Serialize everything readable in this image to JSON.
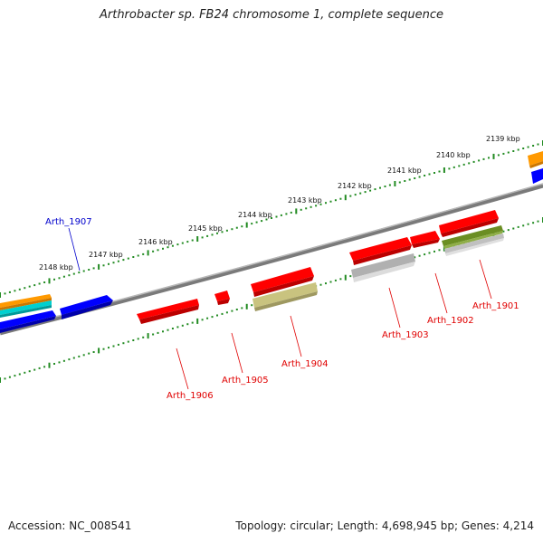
{
  "title": "Arthrobacter sp. FB24 chromosome 1, complete sequence",
  "footer": {
    "accession": "Accession: NC_008541",
    "summary": "Topology: circular; Length: 4,698,945 bp; Genes: 4,214"
  },
  "colors": {
    "backbone": "#808080",
    "tick": "#228B22",
    "red_feature": "#ff0000",
    "blue_feature": "#0000ff",
    "grey_feature": "#b0b0b0",
    "olive_feature": "#c8c080",
    "green_feature": "#6b8e23",
    "orange_feature": "#ff9900",
    "cyan_feature": "#00cccc",
    "label_red": "#e00000",
    "label_blue": "#0000cc"
  },
  "scale_labels": [
    "2139 kbp",
    "2140 kbp",
    "2141 kbp",
    "2142 kbp",
    "2143 kbp",
    "2144 kbp",
    "2145 kbp",
    "2146 kbp",
    "2147 kbp",
    "2148 kbp"
  ],
  "gene_labels": [
    {
      "name": "Arth_1907",
      "color": "blue"
    },
    {
      "name": "Arth_1906",
      "color": "red"
    },
    {
      "name": "Arth_1905",
      "color": "red"
    },
    {
      "name": "Arth_1904",
      "color": "red"
    },
    {
      "name": "Arth_1903",
      "color": "red"
    },
    {
      "name": "Arth_1902",
      "color": "red"
    },
    {
      "name": "Arth_1901",
      "color": "red"
    }
  ]
}
